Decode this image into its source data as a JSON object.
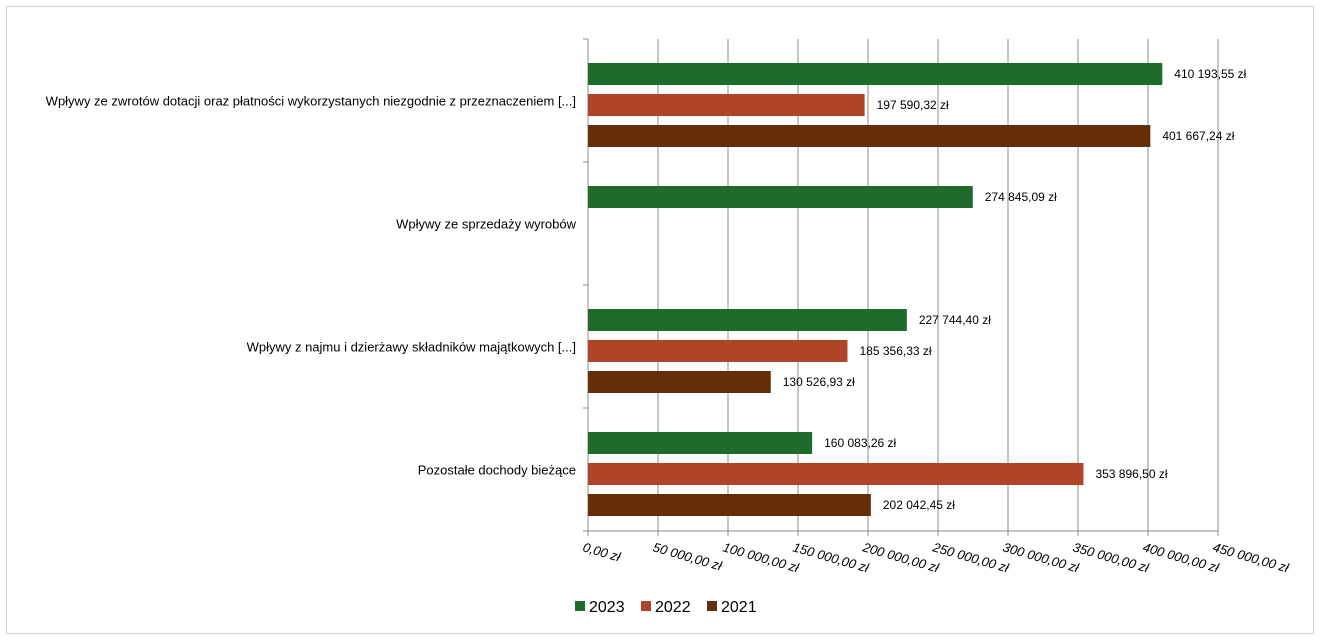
{
  "chart_data": {
    "type": "bar",
    "orientation": "horizontal",
    "categories": [
      "Wpływy ze zwrotów dotacji oraz płatności wykorzystanych niezgodnie z przeznaczeniem [...]",
      "Wpływy ze sprzedaży wyrobów",
      "Wpływy z najmu i dzierżawy składników majątkowych [...]",
      "Pozostałe dochody bieżące"
    ],
    "series": [
      {
        "name": "2023",
        "color": "#1e6b2c",
        "values": [
          410193.55,
          274845.09,
          227744.4,
          160083.26
        ],
        "labels": [
          "410 193,55 zł",
          "274 845,09 zł",
          "227 744,40 zł",
          "160 083,26 zł"
        ]
      },
      {
        "name": "2022",
        "color": "#b04428",
        "values": [
          197590.32,
          null,
          185356.33,
          353896.5
        ],
        "labels": [
          "197 590,32 zł",
          "",
          "185 356,33 zł",
          "353 896,50 zł"
        ]
      },
      {
        "name": "2021",
        "color": "#652d08",
        "values": [
          401667.24,
          null,
          130526.93,
          202042.45
        ],
        "labels": [
          "401 667,24 zł",
          "",
          "130 526,93 zł",
          "202 042,45 zł"
        ]
      }
    ],
    "xlim": [
      0,
      450000
    ],
    "x_ticks": [
      0,
      50000,
      100000,
      150000,
      200000,
      250000,
      300000,
      350000,
      400000,
      450000
    ],
    "x_tick_labels": [
      "0,00 zł",
      "50 000,00 zł",
      "100 000,00 zł",
      "150 000,00 zł",
      "200 000,00 zł",
      "250 000,00 zł",
      "300 000,00 zł",
      "350 000,00 zł",
      "400 000,00 zł",
      "450 000,00 zł"
    ],
    "grid": true,
    "legend_position": "bottom",
    "title": "",
    "xlabel": "",
    "ylabel": ""
  }
}
